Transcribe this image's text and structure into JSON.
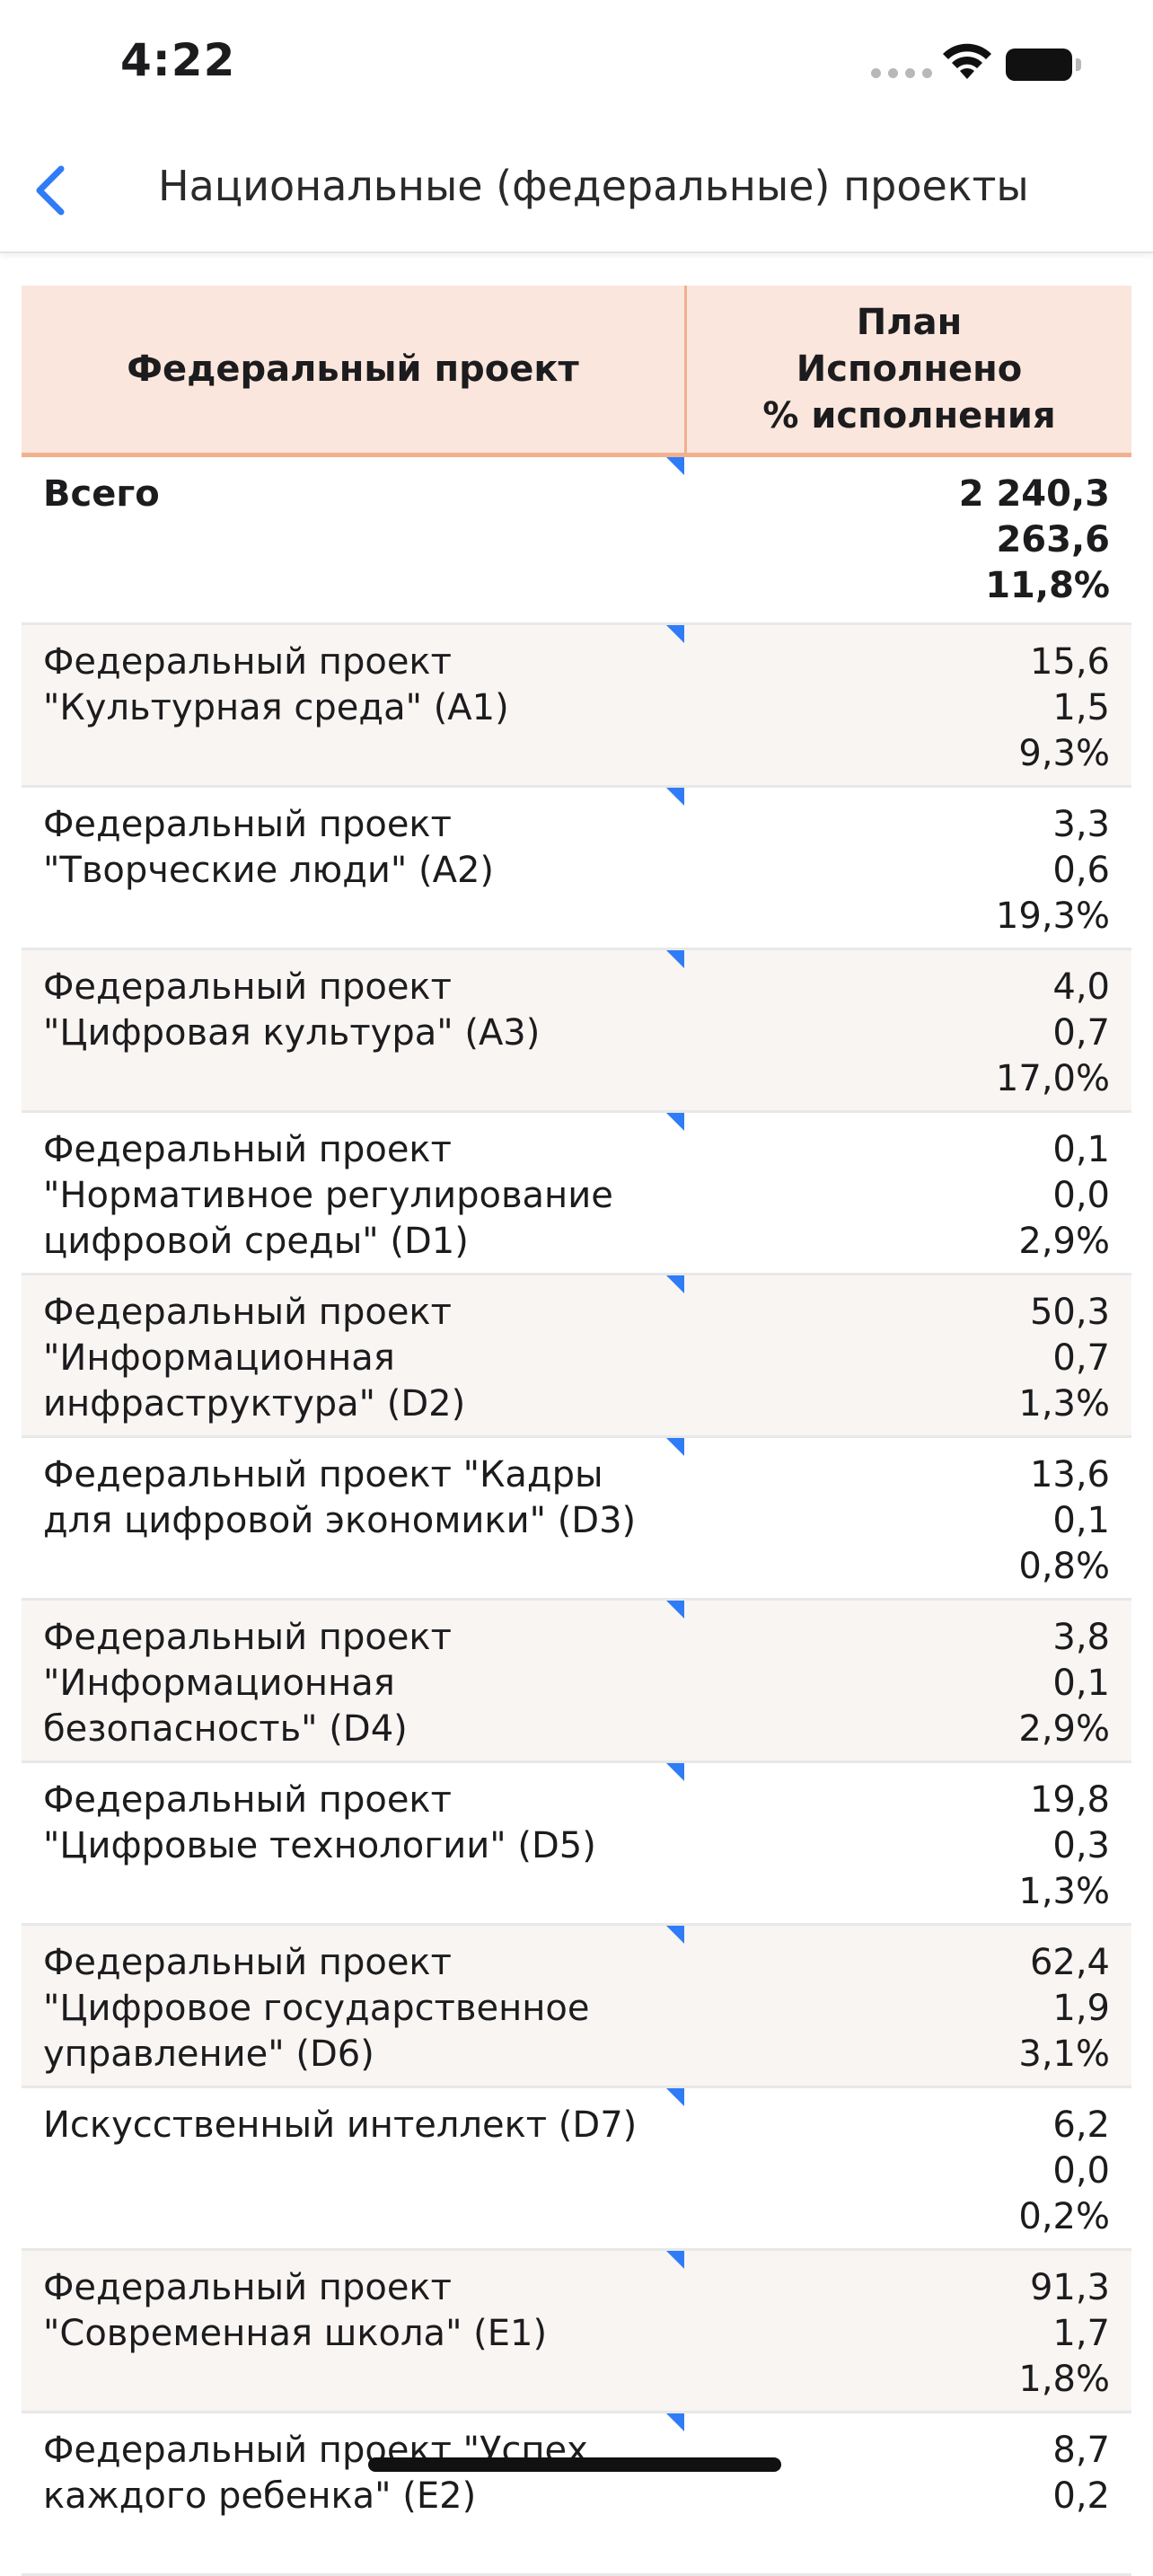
{
  "status_bar": {
    "time": "4:22"
  },
  "nav": {
    "title": "Национальные (федеральные) проекты"
  },
  "table": {
    "header": {
      "name": "Федеральный проект",
      "plan": "План",
      "done": "Исполнено",
      "percent": "% исполнения"
    },
    "total": {
      "name": "Всего",
      "plan": "2 240,3",
      "done": "263,6",
      "percent": "11,8%"
    },
    "rows": [
      {
        "name": "Федеральный проект \"Культурная среда\" (А1)",
        "plan": "15,6",
        "done": "1,5",
        "percent": "9,3%"
      },
      {
        "name": "Федеральный проект \"Творческие люди\" (А2)",
        "plan": "3,3",
        "done": "0,6",
        "percent": "19,3%"
      },
      {
        "name": "Федеральный проект \"Цифровая культура\" (А3)",
        "plan": "4,0",
        "done": "0,7",
        "percent": "17,0%"
      },
      {
        "name": "Федеральный проект \"Нормативное регулирование цифровой среды\" (D1)",
        "plan": "0,1",
        "done": "0,0",
        "percent": "2,9%"
      },
      {
        "name": "Федеральный проект \"Информационная инфраструктура\" (D2)",
        "plan": "50,3",
        "done": "0,7",
        "percent": "1,3%"
      },
      {
        "name": "Федеральный проект \"Кадры для цифровой экономики\" (D3)",
        "plan": "13,6",
        "done": "0,1",
        "percent": "0,8%"
      },
      {
        "name": "Федеральный проект \"Информационная безопасность\" (D4)",
        "plan": "3,8",
        "done": "0,1",
        "percent": "2,9%"
      },
      {
        "name": "Федеральный проект \"Цифровые технологии\" (D5)",
        "plan": "19,8",
        "done": "0,3",
        "percent": "1,3%"
      },
      {
        "name": "Федеральный проект \"Цифровое государственное управление\" (D6)",
        "plan": "62,4",
        "done": "1,9",
        "percent": "3,1%"
      },
      {
        "name": "Искусственный интеллект (D7)",
        "plan": "6,2",
        "done": "0,0",
        "percent": "0,2%"
      },
      {
        "name": "Федеральный проект \"Современная школа\" (Е1)",
        "plan": "91,3",
        "done": "1,7",
        "percent": "1,8%"
      },
      {
        "name": "Федеральный проект \"Успех каждого ребенка\" (Е2)",
        "plan": "8,7",
        "done": "0,2",
        "percent": ""
      }
    ]
  }
}
